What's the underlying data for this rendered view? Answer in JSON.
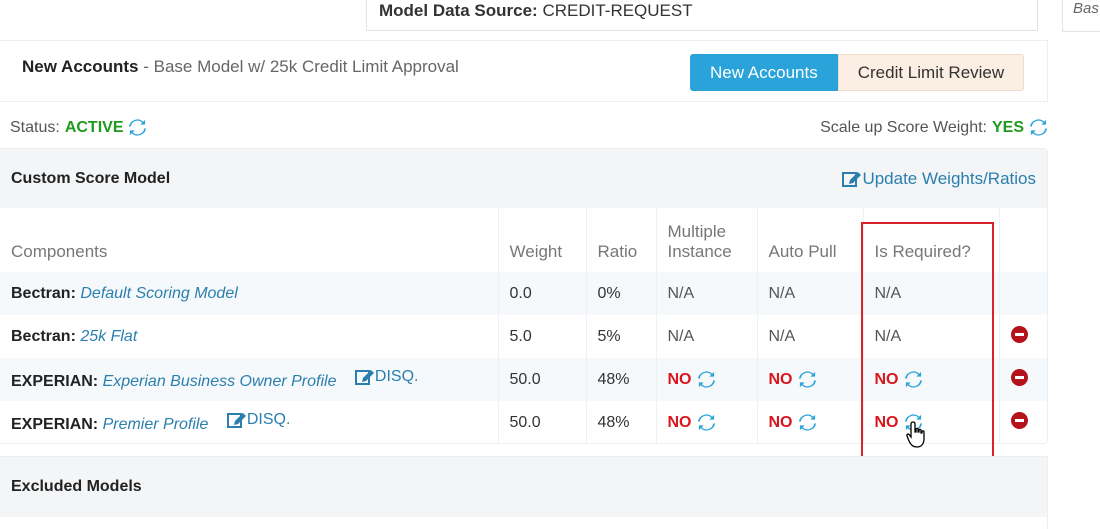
{
  "datasource": {
    "label": "Model Data Source:",
    "value": "CREDIT-REQUEST"
  },
  "side_stub": {
    "text": "Bas"
  },
  "header": {
    "title": "New Accounts",
    "separator": " - ",
    "subtitle": "Base Model w/ 25k Credit Limit Approval",
    "toggle": {
      "active": "New Accounts",
      "inactive": "Credit Limit Review"
    }
  },
  "status": {
    "label": "Status:",
    "value": "ACTIVE"
  },
  "scale": {
    "label": "Scale up Score Weight:",
    "value": "YES"
  },
  "model": {
    "title": "Custom Score Model",
    "update_label": "Update Weights/Ratios",
    "columns": {
      "components": "Components",
      "weight": "Weight",
      "ratio": "Ratio",
      "multiple_line1": "Multiple",
      "multiple_line2": "Instance",
      "auto_pull": "Auto Pull",
      "is_required": "Is Required?"
    },
    "rows": [
      {
        "source": "Bectran:",
        "name": "Default Scoring Model",
        "disq": "",
        "weight": "0.0",
        "ratio": "0%",
        "multiple": "N/A",
        "auto_pull": "N/A",
        "required": "N/A"
      },
      {
        "source": "Bectran:",
        "name": "25k Flat",
        "disq": "",
        "weight": "5.0",
        "ratio": "5%",
        "multiple": "N/A",
        "auto_pull": "N/A",
        "required": "N/A"
      },
      {
        "source": "EXPERIAN:",
        "name": "Experian Business Owner Profile",
        "disq": "DISQ.",
        "weight": "50.0",
        "ratio": "48%",
        "multiple": "NO",
        "auto_pull": "NO",
        "required": "NO"
      },
      {
        "source": "EXPERIAN:",
        "name": "Premier Profile",
        "disq": "DISQ.",
        "weight": "50.0",
        "ratio": "48%",
        "multiple": "NO",
        "auto_pull": "NO",
        "required": "NO"
      }
    ]
  },
  "excluded": {
    "title": "Excluded Models"
  },
  "colors": {
    "accent": "#29a3d9",
    "link": "#2a7fae",
    "active_green": "#1e9b1e",
    "no_red": "#d9161e",
    "highlight_red": "#d9232a"
  },
  "icons": {
    "refresh": "refresh-icon",
    "edit": "edit-icon",
    "remove": "remove-icon"
  }
}
